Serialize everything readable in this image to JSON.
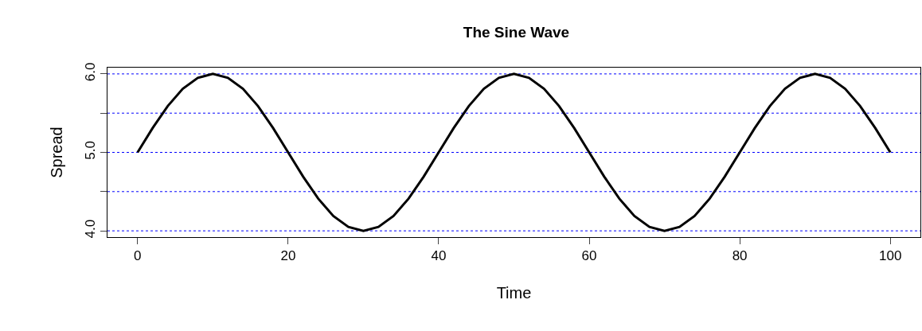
{
  "chart_data": {
    "type": "line",
    "title": "The Sine Wave",
    "xlabel": "Time",
    "ylabel": "Spread",
    "x": [
      0,
      2,
      4,
      6,
      8,
      10,
      12,
      14,
      16,
      18,
      20,
      22,
      24,
      26,
      28,
      30,
      32,
      34,
      36,
      38,
      40,
      42,
      44,
      46,
      48,
      50,
      52,
      54,
      56,
      58,
      60,
      62,
      64,
      66,
      68,
      70,
      72,
      74,
      76,
      78,
      80,
      82,
      84,
      86,
      88,
      90,
      92,
      94,
      96,
      98,
      100
    ],
    "series": [
      {
        "color": "#000000",
        "values": [
          5,
          5.31,
          5.59,
          5.81,
          5.95,
          6,
          5.95,
          5.81,
          5.59,
          5.31,
          5,
          4.69,
          4.41,
          4.19,
          4.05,
          4,
          4.05,
          4.19,
          4.41,
          4.69,
          5,
          5.31,
          5.59,
          5.81,
          5.95,
          6,
          5.95,
          5.81,
          5.59,
          5.31,
          5,
          4.69,
          4.41,
          4.19,
          4.05,
          4,
          4.05,
          4.19,
          4.41,
          4.69,
          5,
          5.31,
          5.59,
          5.81,
          5.95,
          6,
          5.95,
          5.81,
          5.59,
          5.31,
          5
        ]
      }
    ],
    "xlim": [
      -4,
      104
    ],
    "xticks": [
      0,
      20,
      40,
      60,
      80,
      100
    ],
    "ylim": [
      3.92,
      6.08
    ],
    "yticks": [
      {
        "value": 4,
        "label": "4.0"
      },
      {
        "value": 4.5,
        "label": null
      },
      {
        "value": 5,
        "label": "5.0"
      },
      {
        "value": 5.5,
        "label": null
      },
      {
        "value": 6,
        "label": "6.0"
      }
    ],
    "ref_lines": [
      {
        "axis": "y",
        "value": 4,
        "color": "#0000ff",
        "line_style": "dotted"
      },
      {
        "axis": "y",
        "value": 4.5,
        "color": "#0000ff",
        "line_style": "dotted"
      },
      {
        "axis": "y",
        "value": 5,
        "color": "#0000ff",
        "line_style": "dotted"
      },
      {
        "axis": "y",
        "value": 5.5,
        "color": "#0000ff",
        "line_style": "dotted"
      },
      {
        "axis": "y",
        "value": 6,
        "color": "#0000ff",
        "line_style": "dotted"
      }
    ],
    "grid": false,
    "line_style": "solid",
    "marker": "none"
  }
}
